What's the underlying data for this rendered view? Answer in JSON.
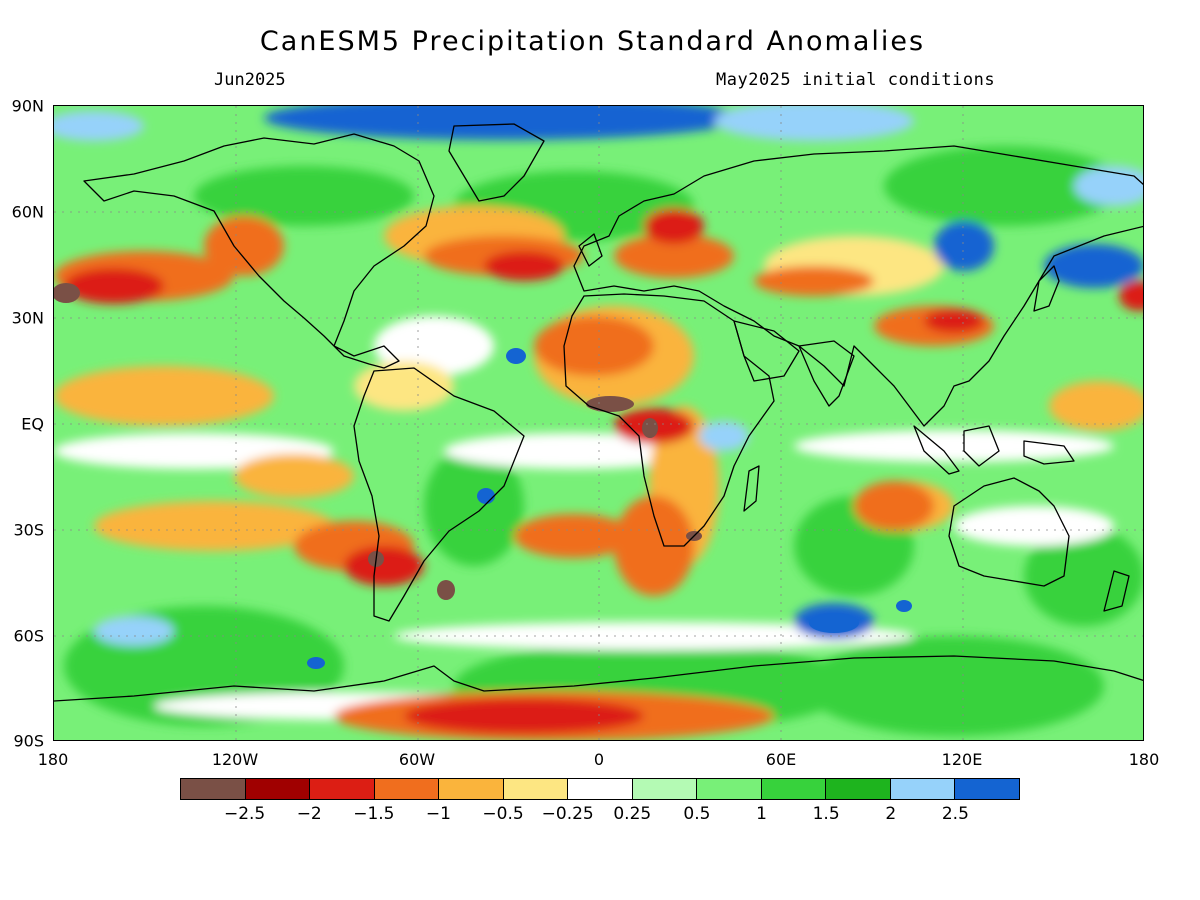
{
  "title": "CanESM5 Precipitation Standard Anomalies",
  "valid_month": "Jun2025",
  "init_conditions": "May2025 initial conditions",
  "map": {
    "projection": "cylindrical equidistant",
    "lat_labels": [
      "90N",
      "60N",
      "30N",
      "EQ",
      "30S",
      "60S",
      "90S"
    ],
    "lon_labels": [
      "180",
      "120W",
      "60W",
      "0",
      "60E",
      "120E",
      "180"
    ]
  },
  "colorbar": {
    "colors": [
      "#7a5046",
      "#a00000",
      "#dc1e14",
      "#f06e1e",
      "#fab43c",
      "#fde682",
      "#ffffff",
      "#b4fab4",
      "#78f078",
      "#37d23c",
      "#1eb41e",
      "#96d2fa",
      "#1464d2"
    ],
    "labels": [
      "−2.5",
      "−2",
      "−1.5",
      "−1",
      "−0.5",
      "−0.25",
      "0.25",
      "0.5",
      "1",
      "1.5",
      "2",
      "2.5"
    ]
  }
}
